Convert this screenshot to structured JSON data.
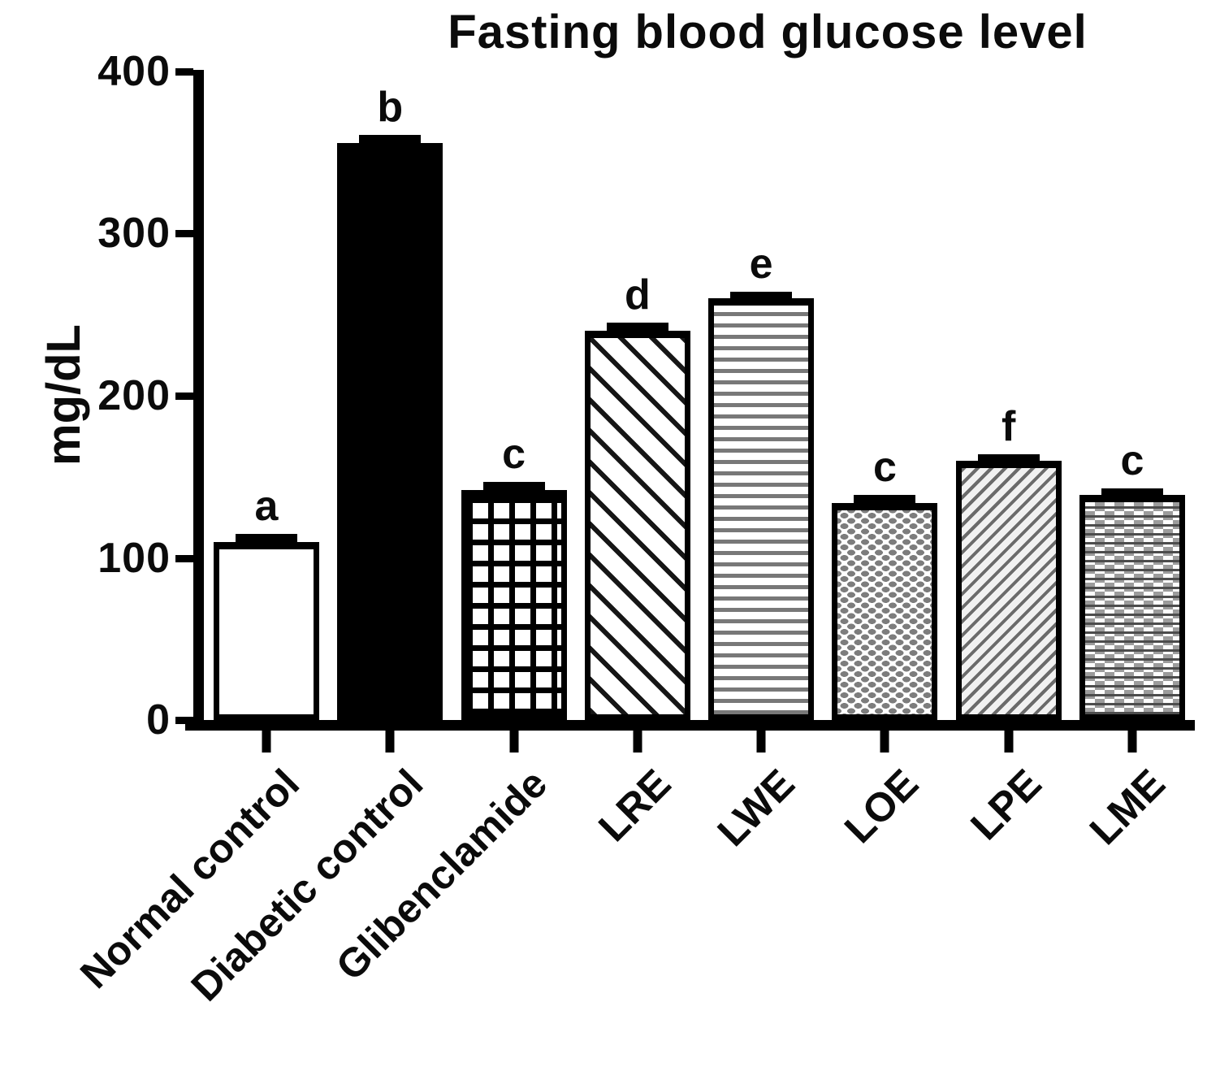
{
  "chart_data": {
    "type": "bar",
    "title": "Fasting blood glucose level",
    "xlabel": "",
    "ylabel": "mg/dL",
    "ylim": [
      0,
      400
    ],
    "y_ticks": [
      "400",
      "300",
      "200",
      "100",
      "0"
    ],
    "grid": false,
    "legend_position": "none",
    "categories": [
      "Normal control",
      "Diabetic control",
      "Glibenclamide",
      "LRE",
      "LWE",
      "LOE",
      "LPE",
      "LME"
    ],
    "values": [
      110,
      356,
      142,
      240,
      260,
      134,
      160,
      139
    ],
    "errors": [
      5,
      5,
      5,
      5,
      4,
      5,
      4,
      4
    ],
    "sig_letters": [
      "a",
      "b",
      "c",
      "d",
      "e",
      "c",
      "f",
      "c"
    ],
    "bar_fill_patterns": [
      "plain-white",
      "solid-black",
      "grid",
      "diagonal-down",
      "horizontal-lines",
      "dots",
      "diagonal-up",
      "bricks"
    ],
    "colors": {
      "ink": "#000000",
      "background": "#ffffff",
      "pattern_gray": "#787878"
    }
  }
}
